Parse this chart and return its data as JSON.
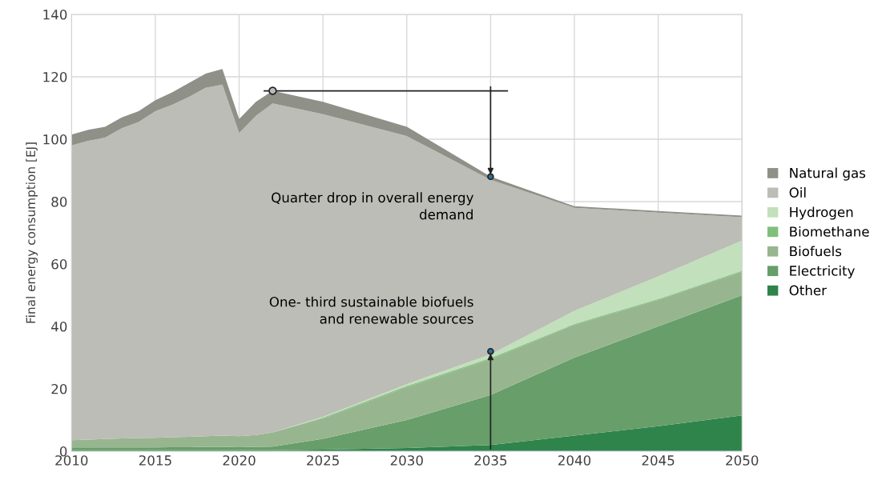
{
  "chart_data": {
    "type": "area",
    "stacked": true,
    "ylabel": "Final energy consumption [EJ]",
    "x": [
      2010,
      2011,
      2012,
      2013,
      2014,
      2015,
      2016,
      2017,
      2018,
      2019,
      2020,
      2021,
      2022,
      2025,
      2030,
      2035,
      2040,
      2045,
      2050
    ],
    "series": [
      {
        "name": "Other",
        "color": "#2e844a",
        "values": [
          0.3,
          0.3,
          0.3,
          0.3,
          0.3,
          0.3,
          0.3,
          0.3,
          0.3,
          0.3,
          0.3,
          0.3,
          0.3,
          0.5,
          1,
          2,
          5,
          8,
          11.5
        ]
      },
      {
        "name": "Electricity",
        "color": "#679e6a",
        "values": [
          0.9,
          0.9,
          0.9,
          0.9,
          0.9,
          0.9,
          1.0,
          1.0,
          1.1,
          1.1,
          1.0,
          1.1,
          1.2,
          3.5,
          9,
          16,
          25,
          32,
          38.5
        ]
      },
      {
        "name": "Biofuels",
        "color": "#97b68f",
        "values": [
          2.3,
          2.5,
          2.7,
          2.9,
          3.0,
          3.1,
          3.2,
          3.3,
          3.4,
          3.6,
          3.5,
          3.8,
          4.5,
          6.5,
          10.5,
          11.5,
          10.5,
          8.5,
          7.5
        ]
      },
      {
        "name": "Biomethane",
        "color": "#7fbf7b",
        "values": [
          0,
          0,
          0,
          0,
          0,
          0,
          0,
          0,
          0,
          0,
          0,
          0,
          0,
          0.3,
          0.4,
          0.4,
          0.3,
          0.3,
          0.3
        ]
      },
      {
        "name": "Hydrogen",
        "color": "#c1e0bb",
        "values": [
          0,
          0,
          0,
          0,
          0,
          0,
          0,
          0,
          0,
          0,
          0,
          0,
          0,
          0.2,
          0.6,
          1.1,
          4.2,
          7.2,
          9.7
        ]
      },
      {
        "name": "Oil",
        "color": "#bcbdb6",
        "values": [
          94.5,
          95.8,
          96.6,
          99.4,
          101.3,
          104.7,
          106.5,
          108.9,
          111.7,
          112.5,
          97.2,
          102.3,
          105.5,
          97,
          79.5,
          56,
          33,
          20.5,
          7.5
        ]
      },
      {
        "name": "Natural gas",
        "color": "#8f9087",
        "values": [
          3.5,
          3.5,
          3.5,
          3.5,
          3.5,
          3.5,
          4,
          4.5,
          4.5,
          5,
          4.5,
          4.5,
          4,
          4,
          3,
          1,
          0.5,
          0.5,
          0.5
        ]
      },
      {
        "type": "line",
        "color": "#222222",
        "x": [
          2021.5,
          2036
        ],
        "values": [
          115.5,
          115.5
        ]
      },
      {
        "type": "scatter",
        "color": "#bcbdb6",
        "marker": "circle",
        "x": [
          2022
        ],
        "values": [
          115.5
        ]
      }
    ],
    "xlim": [
      2010,
      2050
    ],
    "xticks": [
      2010,
      2015,
      2020,
      2025,
      2030,
      2035,
      2040,
      2045,
      2050
    ],
    "ylim": [
      0,
      140
    ],
    "yticks": [
      0,
      20,
      40,
      60,
      80,
      100,
      120,
      140
    ],
    "grid": true,
    "legend": "right",
    "annotations": [
      {
        "text": "Quarter drop in overall energy\ndemand",
        "x": 2035,
        "y": 88
      },
      {
        "text": "One- third sustainable biofuels\nand renewable sources",
        "x": 2035,
        "y": 32
      }
    ]
  }
}
